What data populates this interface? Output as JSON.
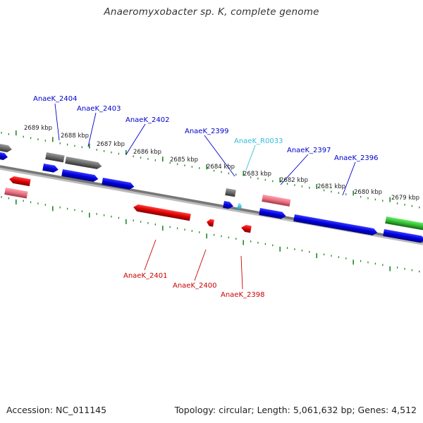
{
  "title": "Anaeromyxobacter sp. K, complete genome",
  "footer": {
    "accession": "Accession: NC_011145",
    "summary": "Topology: circular; Length: 5,061,632 bp; Genes: 4,512"
  },
  "scale_labels": [
    "2689 kbp",
    "2688 kbp",
    "2687 kbp",
    "2686 kbp",
    "2685 kbp",
    "2684 kbp",
    "2683 kbp",
    "2682 kbp",
    "2681 kbp",
    "2680 kbp",
    "2679 kbp"
  ],
  "gene_labels": [
    {
      "text": "AnaeK_2404",
      "strand": "forward"
    },
    {
      "text": "AnaeK_2403",
      "strand": "forward"
    },
    {
      "text": "AnaeK_2402",
      "strand": "forward"
    },
    {
      "text": "AnaeK_2399",
      "strand": "forward"
    },
    {
      "text": "AnaeK_R0033",
      "strand": "rna"
    },
    {
      "text": "AnaeK_2397",
      "strand": "forward"
    },
    {
      "text": "AnaeK_2396",
      "strand": "forward"
    },
    {
      "text": "AnaeK_2401",
      "strand": "reverse"
    },
    {
      "text": "AnaeK_2400",
      "strand": "reverse"
    },
    {
      "text": "AnaeK_2398",
      "strand": "reverse"
    }
  ],
  "colors": {
    "forward": "#0000cc",
    "reverse": "#cc0000",
    "rna": "#33bbdd",
    "scale": "#228822",
    "backbone": "#777777",
    "gray_feature": "#666666",
    "pink_feature": "#e07080",
    "green_feature": "#33bb33"
  }
}
